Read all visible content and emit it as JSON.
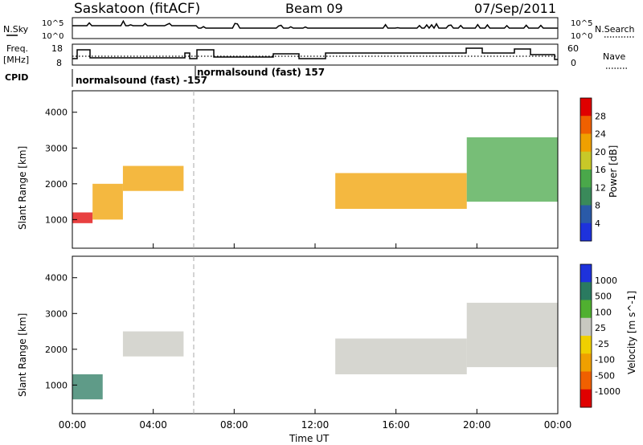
{
  "header": {
    "title": "Saskatoon (fitACF)",
    "beam": "Beam 09",
    "date": "07/Sep/2011"
  },
  "nsky_panel": {
    "left_label": "N.Sky",
    "right_label": "N.Search",
    "left_ticks": [
      "10^5",
      "10^0"
    ],
    "right_ticks": [
      "10^5",
      "10^0"
    ]
  },
  "freq_panel": {
    "left_label_line1": "Freq.",
    "left_label_line2": "[MHz]",
    "left_ticks": [
      "18",
      "8"
    ],
    "right_label": "Nave",
    "right_ticks": [
      "60",
      "0"
    ]
  },
  "cpid": {
    "label": "CPID",
    "segments": [
      {
        "start_hour": 0,
        "text": "normalsound (fast) -157"
      },
      {
        "start_hour": 6.0,
        "text": "normalsound (fast) 157"
      }
    ]
  },
  "colors": {
    "power": [
      "#1e32dc",
      "#2a5aa8",
      "#3a8a5a",
      "#4aa84a",
      "#c8c828",
      "#f0a000",
      "#f06000",
      "#e00000"
    ],
    "velocity": [
      "#e00000",
      "#f06000",
      "#f0a000",
      "#f0d000",
      "#c8c8c0",
      "#50b030",
      "#2a7a60",
      "#1e32dc"
    ]
  },
  "chart_data": [
    {
      "type": "heatmap",
      "name": "power",
      "ylabel": "Slant Range [km]",
      "colorbar_label": "Power [dB]",
      "colorbar_ticks": [
        "28",
        "24",
        "20",
        "16",
        "12",
        "8",
        "4"
      ],
      "y_ticks": [
        "4000",
        "3000",
        "2000",
        "1000"
      ],
      "ylim": [
        200,
        4600
      ],
      "x_ticks": [
        "00:00",
        "04:00",
        "08:00",
        "12:00",
        "16:00",
        "20:00",
        "00:00"
      ],
      "xlim_hours": [
        0,
        24
      ],
      "echo_bands": [
        {
          "x_hours": [
            0.0,
            1.0
          ],
          "range_km": [
            900,
            1200
          ],
          "power_db": 28
        },
        {
          "x_hours": [
            1.0,
            2.5
          ],
          "range_km": [
            1000,
            2000
          ],
          "power_db": 20
        },
        {
          "x_hours": [
            2.5,
            5.5
          ],
          "range_km": [
            1800,
            2500
          ],
          "power_db": 18
        },
        {
          "x_hours": [
            13.0,
            19.5
          ],
          "range_km": [
            1300,
            2300
          ],
          "power_db": 20
        },
        {
          "x_hours": [
            19.5,
            24.0
          ],
          "range_km": [
            1500,
            3300
          ],
          "power_db": 10
        }
      ]
    },
    {
      "type": "heatmap",
      "name": "velocity",
      "ylabel": "Slant Range [km]",
      "xlabel": "Time UT",
      "colorbar_label": "Velocity [m s^-1]",
      "colorbar_ticks": [
        "1000",
        "500",
        "100",
        "25",
        "-25",
        "-100",
        "-500",
        "-1000"
      ],
      "y_ticks": [
        "4000",
        "3000",
        "2000",
        "1000"
      ],
      "ylim": [
        200,
        4600
      ],
      "x_ticks": [
        "00:00",
        "04:00",
        "08:00",
        "12:00",
        "16:00",
        "20:00",
        "00:00"
      ],
      "xlim_hours": [
        0,
        24
      ],
      "echo_bands": [
        {
          "x_hours": [
            0.0,
            1.5
          ],
          "range_km": [
            600,
            1300
          ],
          "velocity": 150
        },
        {
          "x_hours": [
            2.5,
            5.5
          ],
          "range_km": [
            1800,
            2500
          ],
          "velocity": 0
        },
        {
          "x_hours": [
            13.0,
            19.5
          ],
          "range_km": [
            1300,
            2300
          ],
          "velocity": 0
        },
        {
          "x_hours": [
            19.5,
            24.0
          ],
          "range_km": [
            1500,
            3300
          ],
          "velocity": 0
        }
      ]
    }
  ]
}
